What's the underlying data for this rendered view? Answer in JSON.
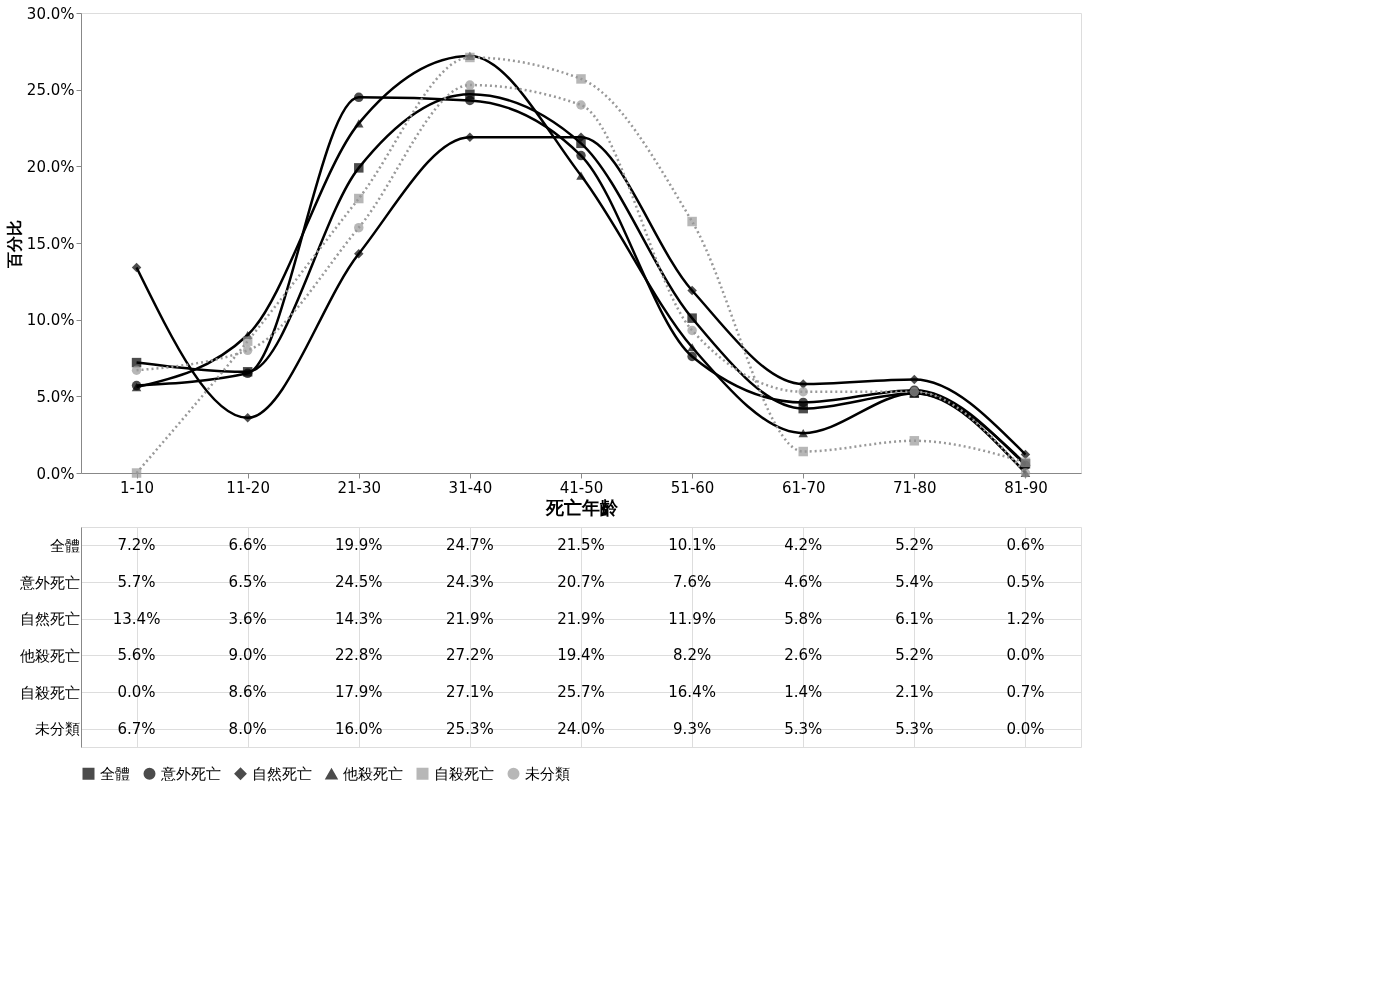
{
  "chart_data": {
    "type": "line",
    "xlabel": "死亡年齡",
    "ylabel": "百分比",
    "categories": [
      "1-10",
      "11-20",
      "21-30",
      "31-40",
      "41-50",
      "51-60",
      "61-70",
      "71-80",
      "81-90"
    ],
    "ylim": [
      0,
      30
    ],
    "yticks": [
      {
        "value": 0,
        "label": "0.0%"
      },
      {
        "value": 5,
        "label": "5.0%"
      },
      {
        "value": 10,
        "label": "10.0%"
      },
      {
        "value": 15,
        "label": "15.0%"
      },
      {
        "value": 20,
        "label": "20.0%"
      },
      {
        "value": 25,
        "label": "25.0%"
      },
      {
        "value": 30,
        "label": "30.0%"
      }
    ],
    "grid": false,
    "legend": "bottom",
    "data_labels": true,
    "series": [
      {
        "name": "全體",
        "color": "#000000",
        "marker": "square",
        "line_style": "solid",
        "values": [
          7.2,
          6.6,
          19.9,
          24.7,
          21.5,
          10.1,
          4.2,
          5.2,
          0.6
        ],
        "value_labels": [
          "7.2%",
          "6.6%",
          "19.9%",
          "24.7%",
          "21.5%",
          "10.1%",
          "4.2%",
          "5.2%",
          "0.6%"
        ]
      },
      {
        "name": "意外死亡",
        "color": "#000000",
        "marker": "circle",
        "line_style": "solid",
        "values": [
          5.7,
          6.5,
          24.5,
          24.3,
          20.7,
          7.6,
          4.6,
          5.4,
          0.5
        ],
        "value_labels": [
          "5.7%",
          "6.5%",
          "24.5%",
          "24.3%",
          "20.7%",
          "7.6%",
          "4.6%",
          "5.4%",
          "0.5%"
        ]
      },
      {
        "name": "自然死亡",
        "color": "#000000",
        "marker": "diamond",
        "line_style": "solid",
        "values": [
          13.4,
          3.6,
          14.3,
          21.9,
          21.9,
          11.9,
          5.8,
          6.1,
          1.2
        ],
        "value_labels": [
          "13.4%",
          "3.6%",
          "14.3%",
          "21.9%",
          "21.9%",
          "11.9%",
          "5.8%",
          "6.1%",
          "1.2%"
        ]
      },
      {
        "name": "他殺死亡",
        "color": "#000000",
        "marker": "triangle",
        "line_style": "solid",
        "values": [
          5.6,
          9.0,
          22.8,
          27.2,
          19.4,
          8.2,
          2.6,
          5.2,
          0.0
        ],
        "value_labels": [
          "5.6%",
          "9.0%",
          "22.8%",
          "27.2%",
          "19.4%",
          "8.2%",
          "2.6%",
          "5.2%",
          "0.0%"
        ]
      },
      {
        "name": "自殺死亡",
        "color": "#999999",
        "marker": "square",
        "line_style": "dotted",
        "values": [
          0.0,
          8.6,
          17.9,
          27.1,
          25.7,
          16.4,
          1.4,
          2.1,
          0.7
        ],
        "value_labels": [
          "0.0%",
          "8.6%",
          "17.9%",
          "27.1%",
          "25.7%",
          "16.4%",
          "1.4%",
          "2.1%",
          "0.7%"
        ]
      },
      {
        "name": "未分類",
        "color": "#999999",
        "marker": "circle",
        "line_style": "dotted",
        "values": [
          6.7,
          8.0,
          16.0,
          25.3,
          24.0,
          9.3,
          5.3,
          5.3,
          0.0
        ],
        "value_labels": [
          "6.7%",
          "8.0%",
          "16.0%",
          "25.3%",
          "24.0%",
          "9.3%",
          "5.3%",
          "5.3%",
          "0.0%"
        ]
      }
    ]
  }
}
